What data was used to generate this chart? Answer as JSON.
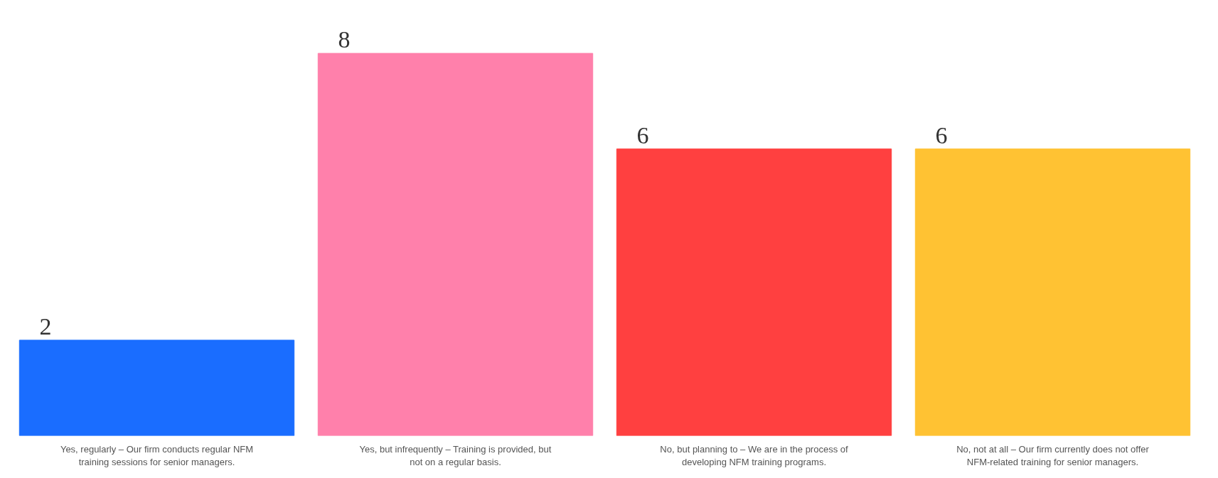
{
  "chart_data": {
    "type": "bar",
    "categories": [
      "Yes, regularly – Our firm conducts regular NFM training sessions for senior managers.",
      "Yes, but infrequently – Training is provided, but not on a regular basis.",
      "No, but planning to – We are in the process of developing NFM training programs.",
      "No, not at all – Our firm currently does not offer NFM-related training for senior managers."
    ],
    "values": [
      2,
      8,
      6,
      6
    ],
    "colors": [
      "#1a6dff",
      "#ff80ab",
      "#ff4040",
      "#ffc233"
    ],
    "data_labels": true,
    "grid": false
  }
}
